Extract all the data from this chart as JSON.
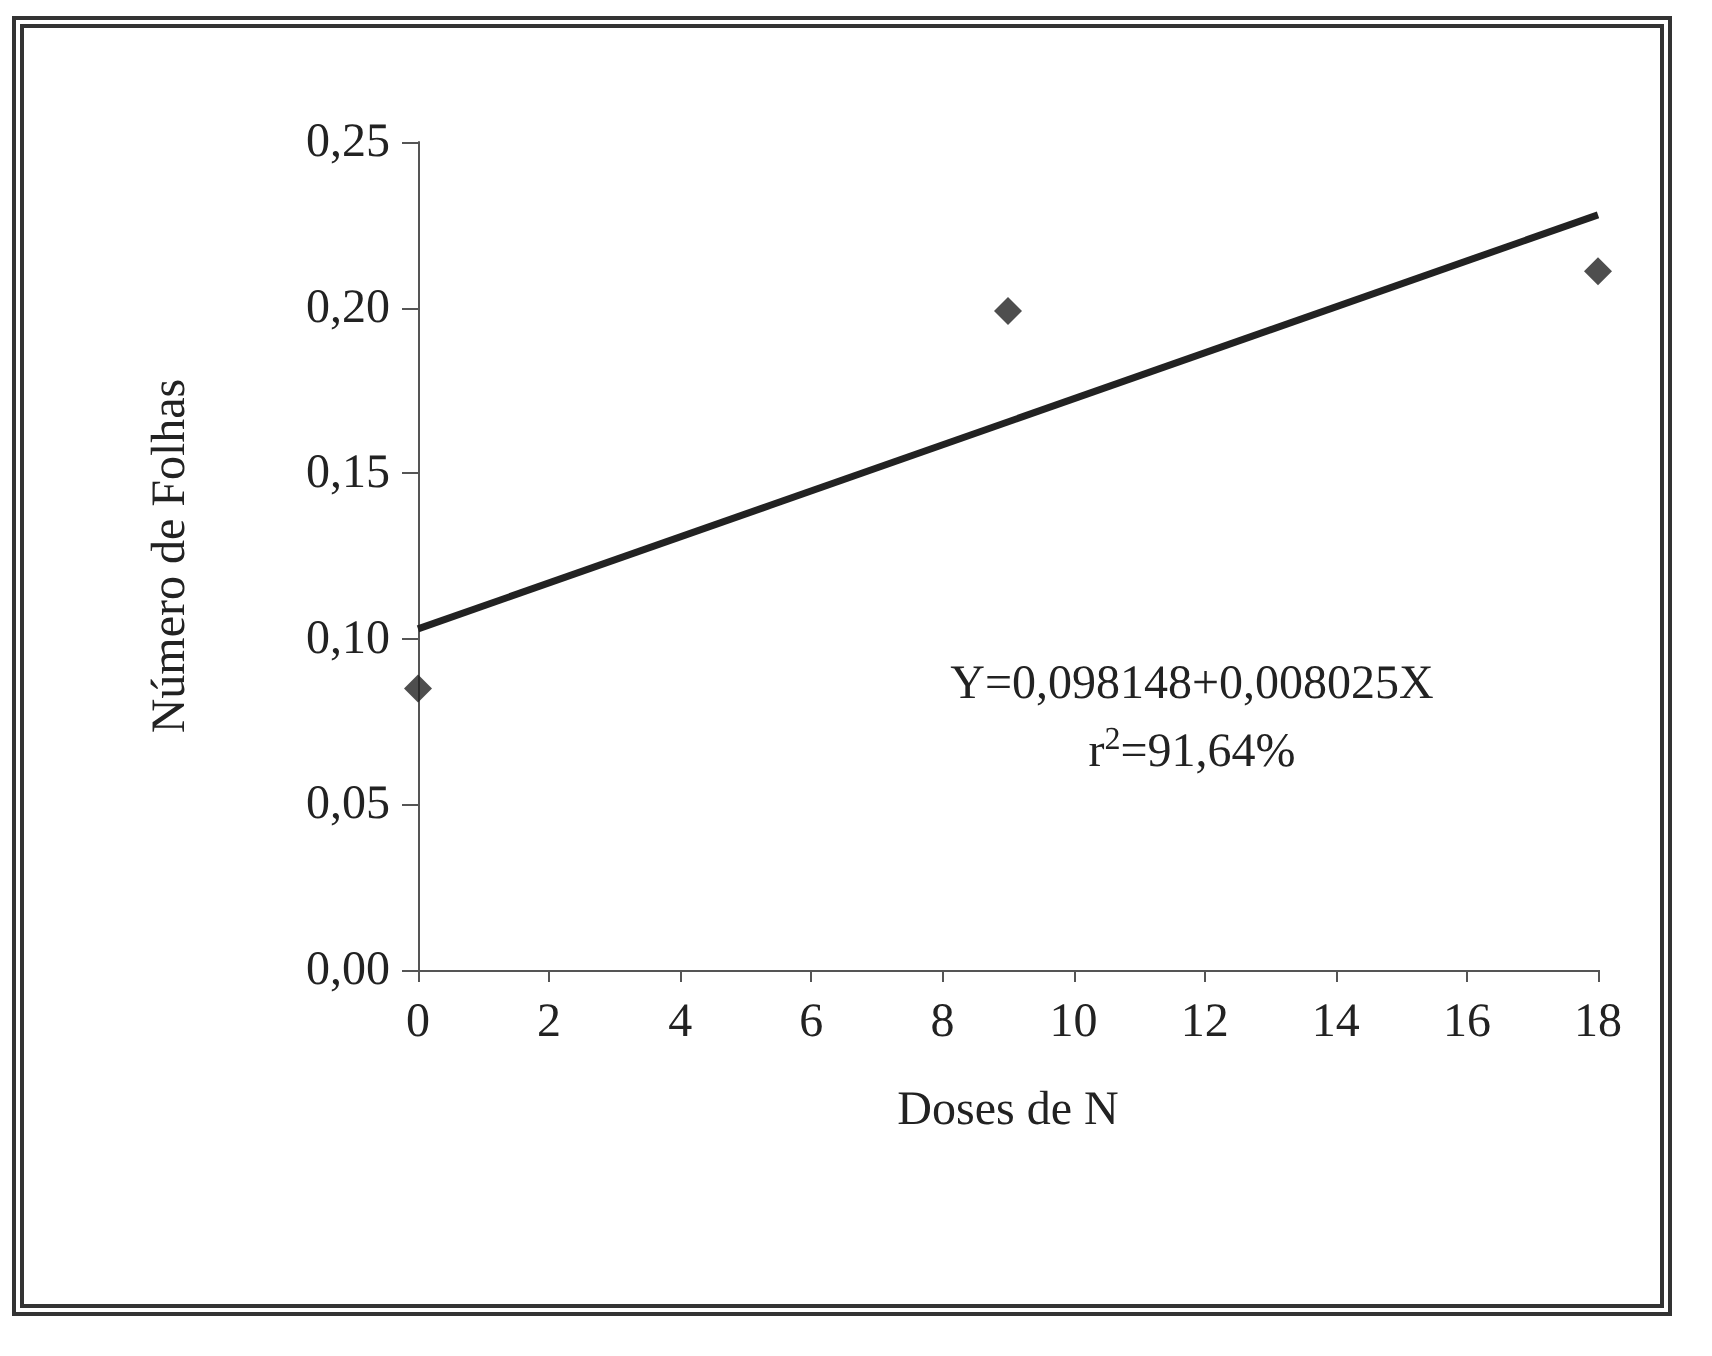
{
  "chart_data": {
    "type": "scatter",
    "xlabel": "Doses de N",
    "ylabel": "Número de Folhas",
    "series": [
      {
        "color": "#222222",
        "x": [
          0,
          9,
          18
        ],
        "values": [
          0.085,
          0.199,
          0.211
        ],
        "marker": "diamond"
      },
      {
        "type": "line",
        "color": "#222222",
        "x": [
          0,
          18
        ],
        "values": [
          0.103,
          0.228
        ],
        "marker": "none",
        "line_style": "solid"
      }
    ],
    "xlim": [
      0,
      18
    ],
    "xticks": [
      0,
      2,
      4,
      6,
      8,
      10,
      12,
      14,
      16,
      18
    ],
    "ylim": [
      0,
      0.25
    ],
    "yticks": [
      {
        "value": 0,
        "label": "0,00"
      },
      {
        "value": 0.05,
        "label": "0,05"
      },
      {
        "value": 0.1,
        "label": "0,10"
      },
      {
        "value": 0.15,
        "label": "0,15"
      },
      {
        "value": 0.2,
        "label": "0,20"
      },
      {
        "value": 0.25,
        "label": "0,25"
      }
    ],
    "grid": false,
    "annotations": [
      "Y=0,098148+0,008025X",
      "r$^{2}$=91,64%"
    ]
  }
}
